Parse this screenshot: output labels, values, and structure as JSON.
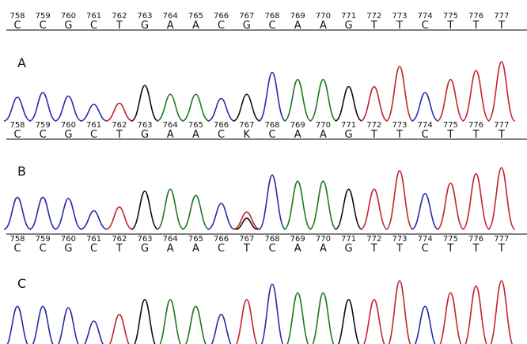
{
  "positions": [
    "758",
    "759",
    "760",
    "761",
    "762",
    "763",
    "764",
    "765",
    "766",
    "767",
    "768",
    "769",
    "770",
    "771",
    "772",
    "773",
    "774",
    "775",
    "776",
    "777"
  ],
  "colors": {
    "C": "#2b2ba8",
    "A": "#1c7a1c",
    "G": "#111111",
    "T": "#c4242b"
  },
  "panels": [
    {
      "label": "A",
      "bases": [
        "C",
        "C",
        "G",
        "C",
        "T",
        "G",
        "A",
        "A",
        "C",
        "G",
        "C",
        "A",
        "A",
        "G",
        "T",
        "T",
        "C",
        "T",
        "T",
        "T"
      ],
      "peaks": [
        {
          "b": "C",
          "h": 0.4
        },
        {
          "b": "C",
          "h": 0.48
        },
        {
          "b": "C",
          "h": 0.42
        },
        {
          "b": "C",
          "h": 0.28
        },
        {
          "b": "T",
          "h": 0.3
        },
        {
          "b": "G",
          "h": 0.6
        },
        {
          "b": "A",
          "h": 0.45
        },
        {
          "b": "A",
          "h": 0.45
        },
        {
          "b": "C",
          "h": 0.38
        },
        {
          "b": "G",
          "h": 0.45
        },
        {
          "b": "C",
          "h": 0.82
        },
        {
          "b": "A",
          "h": 0.7
        },
        {
          "b": "A",
          "h": 0.7
        },
        {
          "b": "G",
          "h": 0.58
        },
        {
          "b": "T",
          "h": 0.58
        },
        {
          "b": "T",
          "h": 0.92
        },
        {
          "b": "C",
          "h": 0.48
        },
        {
          "b": "T",
          "h": 0.7
        },
        {
          "b": "T",
          "h": 0.85
        },
        {
          "b": "T",
          "h": 1.0
        }
      ]
    },
    {
      "label": "B",
      "bases": [
        "C",
        "C",
        "G",
        "C",
        "T",
        "G",
        "A",
        "A",
        "C",
        "K",
        "C",
        "A",
        "A",
        "G",
        "T",
        "T",
        "C",
        "T",
        "T",
        "T"
      ],
      "peaks": [
        {
          "b": "C",
          "h": 0.52
        },
        {
          "b": "C",
          "h": 0.52
        },
        {
          "b": "C",
          "h": 0.5
        },
        {
          "b": "C",
          "h": 0.3
        },
        {
          "b": "T",
          "h": 0.36
        },
        {
          "b": "G",
          "h": 0.62
        },
        {
          "b": "A",
          "h": 0.65
        },
        {
          "b": "A",
          "h": 0.55
        },
        {
          "b": "C",
          "h": 0.42
        },
        {
          "b": "T",
          "h": 0.28
        },
        {
          "b": "C",
          "h": 0.88
        },
        {
          "b": "A",
          "h": 0.78
        },
        {
          "b": "A",
          "h": 0.78
        },
        {
          "b": "G",
          "h": 0.65
        },
        {
          "b": "T",
          "h": 0.65
        },
        {
          "b": "T",
          "h": 0.95
        },
        {
          "b": "C",
          "h": 0.58
        },
        {
          "b": "T",
          "h": 0.75
        },
        {
          "b": "T",
          "h": 0.9
        },
        {
          "b": "T",
          "h": 1.0
        }
      ],
      "extra_peaks": [
        {
          "i": 9,
          "b": "G",
          "h": 0.18
        }
      ]
    },
    {
      "label": "C",
      "bases": [
        "C",
        "C",
        "G",
        "C",
        "T",
        "G",
        "A",
        "A",
        "C",
        "T",
        "C",
        "A",
        "A",
        "G",
        "T",
        "T",
        "C",
        "T",
        "T",
        "T"
      ],
      "peaks": [
        {
          "b": "C",
          "h": 0.62
        },
        {
          "b": "C",
          "h": 0.62
        },
        {
          "b": "C",
          "h": 0.6
        },
        {
          "b": "C",
          "h": 0.4
        },
        {
          "b": "T",
          "h": 0.5
        },
        {
          "b": "G",
          "h": 0.72
        },
        {
          "b": "A",
          "h": 0.72
        },
        {
          "b": "A",
          "h": 0.62
        },
        {
          "b": "C",
          "h": 0.5
        },
        {
          "b": "T",
          "h": 0.72
        },
        {
          "b": "C",
          "h": 0.95
        },
        {
          "b": "A",
          "h": 0.82
        },
        {
          "b": "A",
          "h": 0.82
        },
        {
          "b": "G",
          "h": 0.72
        },
        {
          "b": "T",
          "h": 0.72
        },
        {
          "b": "T",
          "h": 1.0
        },
        {
          "b": "C",
          "h": 0.62
        },
        {
          "b": "T",
          "h": 0.82
        },
        {
          "b": "T",
          "h": 0.92
        },
        {
          "b": "T",
          "h": 1.0
        }
      ]
    }
  ]
}
